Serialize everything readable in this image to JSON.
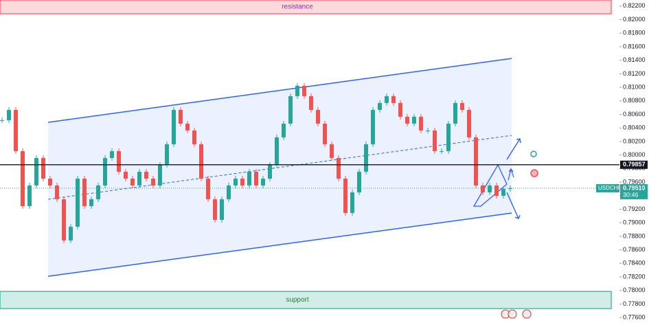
{
  "chart_data": {
    "type": "candlestick",
    "series": [
      {
        "name": "USDCHF",
        "color": "#26a69a",
        "down_color": "#ef5350",
        "values": [
          0.80515,
          0.80667,
          0.80058,
          0.79246,
          0.79551,
          0.79957,
          0.79652,
          0.79551,
          0.79348,
          0.78739,
          0.78942,
          0.79652,
          0.79246,
          0.79348,
          0.79551,
          0.79957,
          0.80058,
          0.79754,
          0.79652,
          0.79551,
          0.79754,
          0.79652,
          0.79551,
          0.79855,
          0.8016,
          0.80667,
          0.80464,
          0.80363,
          0.8016,
          0.79652,
          0.79348,
          0.79043,
          0.79348,
          0.79551,
          0.79652,
          0.79551,
          0.79754,
          0.79551,
          0.79652,
          0.79855,
          0.80261,
          0.80464,
          0.8087,
          0.81023,
          0.8087,
          0.80667,
          0.80464,
          0.8016,
          0.79957,
          0.79652,
          0.79145,
          0.79449,
          0.79754,
          0.8016,
          0.80667,
          0.80769,
          0.8087,
          0.80769,
          0.80566,
          0.80464,
          0.80566,
          0.80363,
          0.80363,
          0.80058,
          0.80058,
          0.80464,
          0.80769,
          0.80667,
          0.80261,
          0.79551,
          0.79449,
          0.79551,
          0.79399,
          0.795,
          0.7951
        ]
      }
    ],
    "ylim": [
      0.7752,
      0.8229
    ],
    "yticks": [
      {
        "value": 0.822,
        "label": "0.82200"
      },
      {
        "value": 0.82,
        "label": "0.82000"
      },
      {
        "value": 0.818,
        "label": "0.81800"
      },
      {
        "value": 0.816,
        "label": "0.81600"
      },
      {
        "value": 0.814,
        "label": "0.81400"
      },
      {
        "value": 0.812,
        "label": "0.81200"
      },
      {
        "value": 0.81,
        "label": "0.81000"
      },
      {
        "value": 0.808,
        "label": "0.80800"
      },
      {
        "value": 0.806,
        "label": "0.80600"
      },
      {
        "value": 0.804,
        "label": "0.80400"
      },
      {
        "value": 0.802,
        "label": "0.80200"
      },
      {
        "value": 0.8,
        "label": "0.80000"
      },
      {
        "value": 0.798,
        "label": "0.79800"
      },
      {
        "value": 0.796,
        "label": "0.79600"
      },
      {
        "value": 0.794,
        "label": "0.79400"
      },
      {
        "value": 0.792,
        "label": "0.79200"
      },
      {
        "value": 0.79,
        "label": "0.79000"
      },
      {
        "value": 0.788,
        "label": "0.78800"
      },
      {
        "value": 0.786,
        "label": "0.78600"
      },
      {
        "value": 0.784,
        "label": "0.78400"
      },
      {
        "value": 0.782,
        "label": "0.78200"
      },
      {
        "value": 0.78,
        "label": "0.78000"
      },
      {
        "value": 0.778,
        "label": "0.77800"
      },
      {
        "value": 0.776,
        "label": "0.77600"
      }
    ],
    "grid": false,
    "zones": [
      {
        "label": "resistance",
        "range": [
          0.8229,
          0.82087
        ],
        "color": "#f23645"
      },
      {
        "label": "support",
        "range": [
          0.77987,
          0.77733
        ],
        "color": "#089981"
      }
    ],
    "price_line": 0.79857,
    "last_price": {
      "symbol": "USDCHF",
      "value": 0.7951,
      "value_label": "0.79510",
      "countdown": "30:46"
    }
  }
}
